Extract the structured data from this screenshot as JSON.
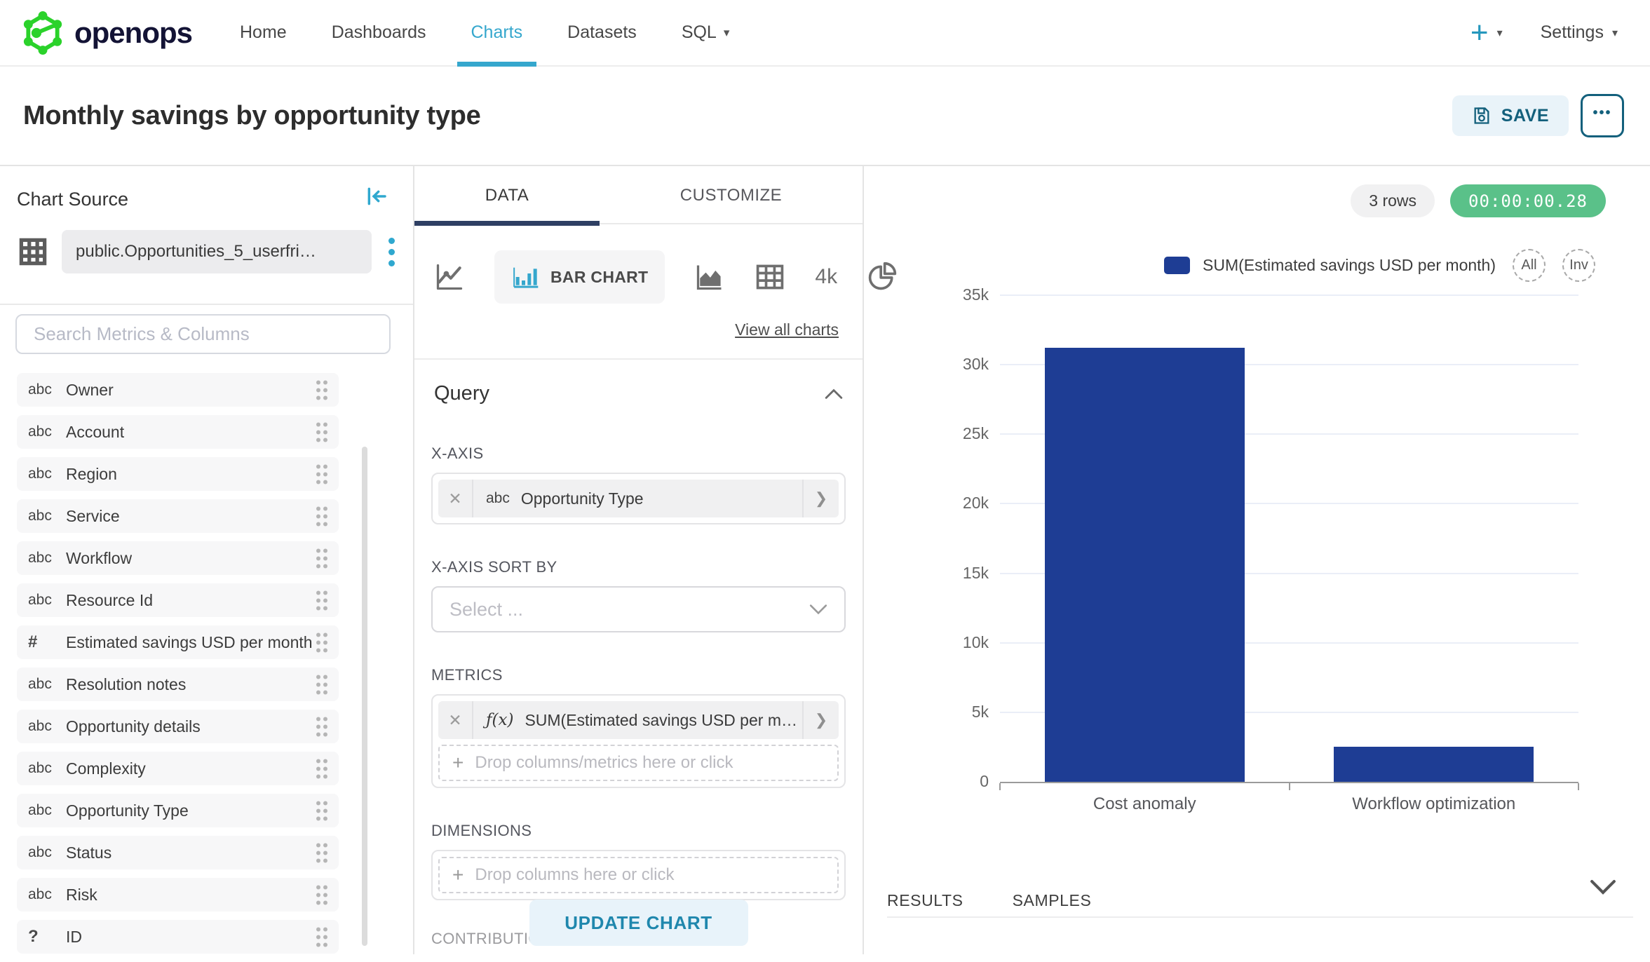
{
  "nav": {
    "brand": "openops",
    "items": [
      {
        "label": "Home",
        "active": false,
        "caret": false
      },
      {
        "label": "Dashboards",
        "active": false,
        "caret": false
      },
      {
        "label": "Charts",
        "active": true,
        "caret": false
      },
      {
        "label": "Datasets",
        "active": false,
        "caret": false
      },
      {
        "label": "SQL",
        "active": false,
        "caret": true
      }
    ],
    "settings_label": "Settings"
  },
  "header": {
    "title": "Monthly savings by opportunity type",
    "save_label": "SAVE",
    "more_label": "•••"
  },
  "chart_source": {
    "title": "Chart Source",
    "dataset_name": "public.Opportunities_5_userfri…",
    "search_placeholder": "Search Metrics & Columns",
    "columns": [
      {
        "type": "abc",
        "label": "Owner"
      },
      {
        "type": "abc",
        "label": "Account"
      },
      {
        "type": "abc",
        "label": "Region"
      },
      {
        "type": "abc",
        "label": "Service"
      },
      {
        "type": "abc",
        "label": "Workflow"
      },
      {
        "type": "abc",
        "label": "Resource Id"
      },
      {
        "type": "#",
        "label": "Estimated savings USD per month"
      },
      {
        "type": "abc",
        "label": "Resolution notes"
      },
      {
        "type": "abc",
        "label": "Opportunity details"
      },
      {
        "type": "abc",
        "label": "Complexity"
      },
      {
        "type": "abc",
        "label": "Opportunity Type"
      },
      {
        "type": "abc",
        "label": "Status"
      },
      {
        "type": "abc",
        "label": "Risk"
      },
      {
        "type": "?",
        "label": "ID"
      }
    ]
  },
  "panel": {
    "tabs": [
      "DATA",
      "CUSTOMIZE"
    ],
    "bar_chart_label": "BAR CHART",
    "kpi_label": "4k",
    "view_all_label": "View all charts",
    "query_title": "Query",
    "x_axis_label": "X-AXIS",
    "x_axis_value_type": "abc",
    "x_axis_value": "Opportunity Type",
    "x_axis_sort_label": "X-AXIS SORT BY",
    "sort_placeholder": "Select ...",
    "metrics_label": "METRICS",
    "metric_fn": "ƒ(x)",
    "metric_value": "SUM(Estimated savings USD per m…",
    "metrics_drop_placeholder": "Drop columns/metrics here or click",
    "dimensions_label": "DIMENSIONS",
    "dimensions_drop_placeholder": "Drop columns here or click",
    "contribution_label": "CONTRIBUTION MODE",
    "update_button_label": "UPDATE CHART"
  },
  "results": {
    "rows_badge": "3 rows",
    "timer": "00:00:00.28",
    "legend_all": "All",
    "legend_inv": "Inv",
    "tabs": [
      "RESULTS",
      "SAMPLES"
    ]
  },
  "chart_data": {
    "type": "bar",
    "categories": [
      "Cost anomaly",
      "Workflow optimization"
    ],
    "series": [
      {
        "name": "SUM(Estimated savings USD per month)",
        "values": [
          31200,
          2500
        ]
      }
    ],
    "ylim": [
      0,
      35000
    ],
    "ytick_step": 5000,
    "ytick_labels": [
      "0",
      "5k",
      "10k",
      "15k",
      "20k",
      "25k",
      "30k",
      "35k"
    ],
    "grid": true,
    "legend_position": "top-right",
    "bar_color": "#1e3d94"
  },
  "colors": {
    "accent_blue": "#2fa8cf",
    "nav_active_blue": "#35a7cd",
    "tab_underline_navy": "#2e3f63",
    "bar_blue": "#1e3d94",
    "timer_green": "#5ac189",
    "button_teal": "#13607c"
  }
}
